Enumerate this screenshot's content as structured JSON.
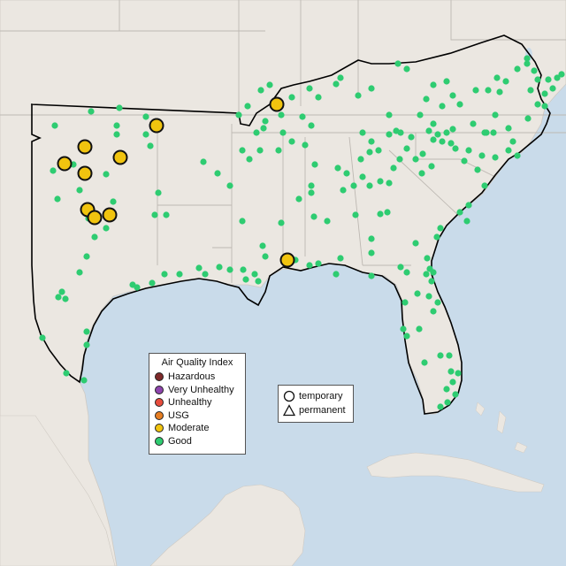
{
  "legend": {
    "title": "Air Quality Index",
    "categories": [
      {
        "label": "Hazardous",
        "color": "#7e2a2a"
      },
      {
        "label": "Very Unhealthy",
        "color": "#8e44ad"
      },
      {
        "label": "Unhealthy",
        "color": "#e74c3c"
      },
      {
        "label": "USG",
        "color": "#e67e22"
      },
      {
        "label": "Moderate",
        "color": "#f1c40f"
      },
      {
        "label": "Good",
        "color": "#2ecc71"
      }
    ]
  },
  "shape_legend": {
    "items": [
      {
        "label": "temporary",
        "icon": "circle-outline-icon"
      },
      {
        "label": "permanent",
        "icon": "triangle-outline-icon"
      }
    ]
  },
  "colors": {
    "water": "#c9dbea",
    "land": "#ebe7e1",
    "state_border": "#bdb8b2",
    "region_outline": "#000000",
    "moderate": "#f1c40f",
    "good": "#2ecc71"
  }
}
